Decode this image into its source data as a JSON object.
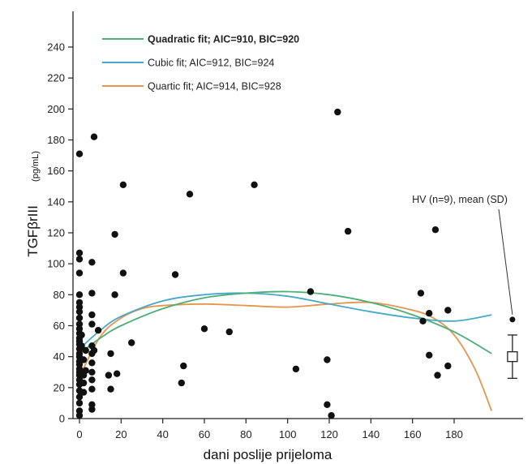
{
  "chart_data": {
    "type": "scatter",
    "xlabel": "dani poslije prijeloma",
    "ylabel_main": "TGFβrIII",
    "ylabel_unit": "(pg/mL)",
    "xlim": [
      -5,
      215
    ],
    "ylim": [
      0,
      250
    ],
    "xticks": [
      0,
      20,
      40,
      60,
      80,
      100,
      120,
      140,
      160,
      180
    ],
    "yticks": [
      0,
      20,
      40,
      60,
      80,
      100,
      120,
      140,
      160,
      180,
      200,
      220,
      240
    ],
    "colors": {
      "quadratic": "#4caf78",
      "cubic": "#45a9c9",
      "quartic": "#e8944a",
      "points": "#111111"
    },
    "legend": [
      {
        "key": "quadratic",
        "label": "Quadratic fit; AIC=910, BIC=920",
        "bold": true
      },
      {
        "key": "cubic",
        "label": "Cubic fit; AIC=912, BIC=924",
        "bold": false
      },
      {
        "key": "quartic",
        "label": "Quartic fit; AIC=914, BIC=928",
        "bold": false
      }
    ],
    "fits": [
      {
        "key": "quadratic",
        "x": [
          0,
          10,
          20,
          40,
          60,
          80,
          100,
          120,
          140,
          160,
          180,
          198
        ],
        "y": [
          42,
          52,
          60,
          71,
          78,
          81,
          82,
          80,
          75,
          67,
          56,
          42
        ]
      },
      {
        "key": "cubic",
        "x": [
          0,
          10,
          20,
          40,
          60,
          80,
          100,
          120,
          140,
          160,
          180,
          198
        ],
        "y": [
          45,
          57,
          66,
          76,
          80,
          81,
          79,
          74,
          69,
          65,
          63,
          67
        ]
      },
      {
        "key": "quartic",
        "x": [
          0,
          10,
          20,
          30,
          40,
          60,
          80,
          100,
          120,
          140,
          160,
          170,
          180,
          190,
          198
        ],
        "y": [
          27,
          53,
          65,
          71,
          73,
          74,
          73,
          72,
          74,
          75,
          70,
          65,
          54,
          32,
          5
        ]
      }
    ],
    "points": [
      [
        0,
        171
      ],
      [
        0,
        107
      ],
      [
        0,
        103
      ],
      [
        0,
        94
      ],
      [
        0,
        80
      ],
      [
        0,
        75
      ],
      [
        0,
        72
      ],
      [
        0,
        69
      ],
      [
        0,
        65
      ],
      [
        0,
        61
      ],
      [
        0,
        58
      ],
      [
        0,
        55
      ],
      [
        0,
        52
      ],
      [
        0,
        50
      ],
      [
        0,
        48
      ],
      [
        0,
        45
      ],
      [
        0,
        42
      ],
      [
        0,
        40
      ],
      [
        0,
        37
      ],
      [
        0,
        35
      ],
      [
        0,
        32
      ],
      [
        0,
        30
      ],
      [
        0,
        28
      ],
      [
        0,
        25
      ],
      [
        0,
        22
      ],
      [
        0,
        18
      ],
      [
        0,
        14
      ],
      [
        0,
        10
      ],
      [
        0,
        5
      ],
      [
        0,
        2
      ],
      [
        1,
        54
      ],
      [
        1,
        47
      ],
      [
        2,
        38
      ],
      [
        2,
        28
      ],
      [
        2,
        23
      ],
      [
        2,
        17
      ],
      [
        3,
        44
      ],
      [
        3,
        31
      ],
      [
        6,
        101
      ],
      [
        6,
        81
      ],
      [
        6,
        67
      ],
      [
        6,
        61
      ],
      [
        6,
        47
      ],
      [
        6,
        42
      ],
      [
        6,
        36
      ],
      [
        6,
        30
      ],
      [
        6,
        25
      ],
      [
        6,
        19
      ],
      [
        6,
        9
      ],
      [
        6,
        6
      ],
      [
        7,
        182
      ],
      [
        7,
        44
      ],
      [
        9,
        57
      ],
      [
        14,
        28
      ],
      [
        15,
        42
      ],
      [
        15,
        19
      ],
      [
        17,
        119
      ],
      [
        17,
        80
      ],
      [
        18,
        29
      ],
      [
        21,
        151
      ],
      [
        21,
        94
      ],
      [
        25,
        49
      ],
      [
        46,
        93
      ],
      [
        49,
        23
      ],
      [
        50,
        34
      ],
      [
        53,
        145
      ],
      [
        60,
        58
      ],
      [
        72,
        56
      ],
      [
        84,
        151
      ],
      [
        104,
        32
      ],
      [
        111,
        82
      ],
      [
        119,
        38
      ],
      [
        119,
        9
      ],
      [
        121,
        2
      ],
      [
        124,
        198
      ],
      [
        129,
        121
      ],
      [
        164,
        81
      ],
      [
        165,
        63
      ],
      [
        168,
        41
      ],
      [
        168,
        68
      ],
      [
        171,
        122
      ],
      [
        172,
        28
      ],
      [
        177,
        34
      ],
      [
        177,
        70
      ]
    ],
    "hv": {
      "label": "HV (n=9), mean (SD)",
      "x": 208,
      "mean": 40,
      "sd": 14,
      "extra_point": 64
    }
  }
}
